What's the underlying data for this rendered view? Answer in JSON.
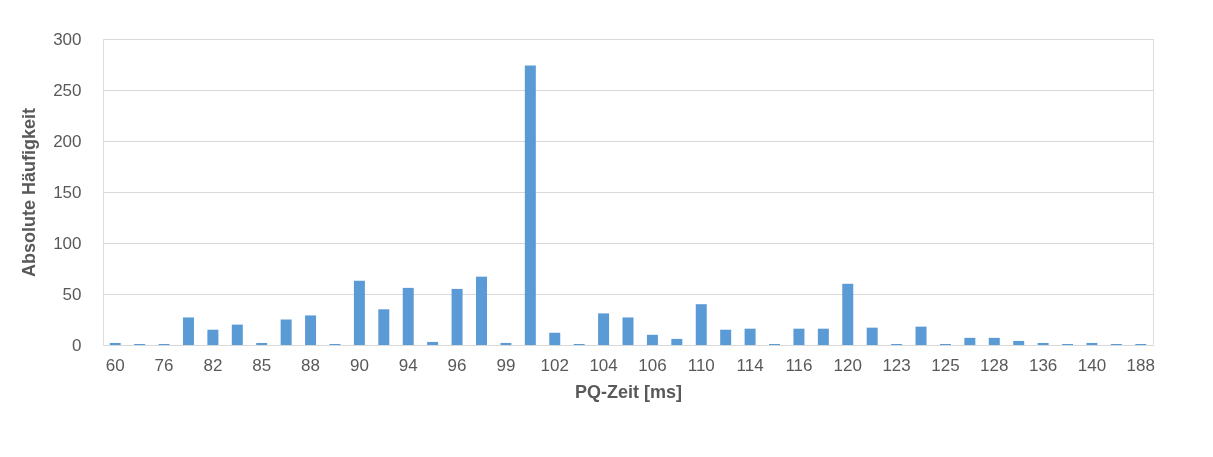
{
  "chart_data": {
    "type": "bar",
    "xlabel": "PQ-Zeit [ms]",
    "ylabel": "Absolute Häufigkeit",
    "categories": [
      "60",
      null,
      "76",
      null,
      "82",
      null,
      "85",
      null,
      "88",
      null,
      "90",
      null,
      "94",
      null,
      "96",
      null,
      "99",
      null,
      "102",
      null,
      "104",
      null,
      "106",
      null,
      "110",
      null,
      "114",
      null,
      "116",
      null,
      "120",
      null,
      "123",
      null,
      "125",
      null,
      "128",
      null,
      "136",
      null,
      "140",
      null,
      "188"
    ],
    "values": [
      2,
      1,
      1,
      27,
      15,
      20,
      2,
      25,
      29,
      1,
      63,
      35,
      56,
      3,
      55,
      67,
      2,
      274,
      12,
      1,
      31,
      27,
      10,
      6,
      40,
      15,
      16,
      1,
      16,
      16,
      60,
      17,
      1,
      18,
      1,
      7,
      7,
      4,
      2,
      1,
      2,
      1,
      1
    ],
    "color": "#5b9bd5",
    "ylim": [
      0,
      300
    ],
    "yticks": [
      0,
      50,
      100,
      150,
      200,
      250,
      300
    ],
    "grid": "y"
  }
}
